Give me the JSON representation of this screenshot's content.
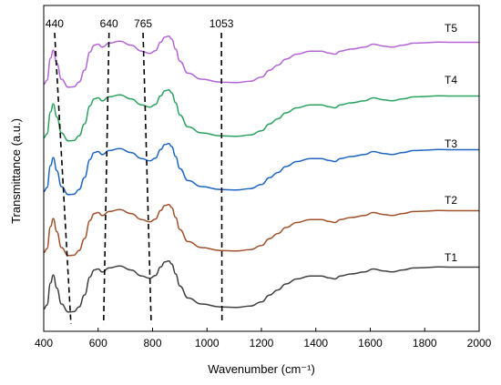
{
  "chart_data": {
    "type": "line",
    "xlabel": "Wavenumber (cm⁻¹)",
    "ylabel": "Transmittance (a.u.)",
    "xlim": [
      400,
      2000
    ],
    "xticks": [
      "400",
      "600",
      "800",
      "1000",
      "1200",
      "1400",
      "1600",
      "1800",
      "2000"
    ],
    "y_ticks_shown": false,
    "grid": false,
    "legend": "series labels placed at right beside each curve",
    "annotations": [
      {
        "label": "440",
        "line_from_x": 440,
        "line_to_x": 500,
        "style": "dashed"
      },
      {
        "label": "640",
        "line_from_x": 640,
        "line_to_x": 620,
        "style": "dashed"
      },
      {
        "label": "765",
        "line_from_x": 765,
        "line_to_x": 795,
        "style": "dashed"
      },
      {
        "label": "1053",
        "line_from_x": 1053,
        "line_to_x": 1055,
        "style": "dashed"
      }
    ],
    "series": [
      {
        "name": "T1",
        "color": "#404040",
        "x": [
          400,
          412,
          425,
          435,
          448,
          465,
          490,
          510,
          530,
          550,
          570,
          585,
          600,
          615,
          640,
          680,
          720,
          760,
          790,
          810,
          830,
          845,
          860,
          870,
          885,
          900,
          930,
          980,
          1050,
          1110,
          1160,
          1200,
          1230,
          1260,
          1290,
          1330,
          1380,
          1420,
          1450,
          1470,
          1490,
          1530,
          1580,
          1610,
          1650,
          1680,
          1720,
          1760,
          1800,
          1850,
          1900,
          1950,
          2000
        ],
        "y": [
          0.25,
          0.45,
          1.55,
          1.95,
          1.3,
          0.5,
          0.1,
          0.12,
          0.35,
          0.95,
          1.85,
          2.2,
          2.25,
          2.1,
          2.3,
          2.4,
          2.2,
          1.9,
          1.78,
          1.92,
          2.35,
          2.6,
          2.65,
          2.5,
          2.0,
          1.4,
          0.8,
          0.5,
          0.35,
          0.33,
          0.4,
          0.6,
          0.95,
          1.2,
          1.5,
          1.75,
          1.9,
          1.9,
          1.8,
          1.75,
          1.9,
          2.0,
          2.1,
          2.25,
          2.15,
          2.1,
          2.2,
          2.3,
          2.32,
          2.35,
          2.34,
          2.34,
          2.34
        ]
      },
      {
        "name": "T2",
        "color": "#a0522d",
        "x": [
          400,
          412,
          425,
          435,
          448,
          465,
          490,
          510,
          530,
          550,
          570,
          585,
          600,
          615,
          640,
          680,
          720,
          760,
          790,
          810,
          830,
          845,
          860,
          870,
          885,
          900,
          930,
          980,
          1050,
          1110,
          1160,
          1200,
          1230,
          1260,
          1290,
          1330,
          1380,
          1420,
          1450,
          1470,
          1490,
          1530,
          1580,
          1610,
          1650,
          1680,
          1720,
          1760,
          1800,
          1850,
          1900,
          1950,
          2000
        ],
        "y": [
          0.25,
          0.45,
          1.55,
          1.95,
          1.3,
          0.5,
          0.1,
          0.12,
          0.35,
          0.95,
          1.85,
          2.2,
          2.25,
          2.1,
          2.3,
          2.4,
          2.2,
          1.9,
          1.78,
          1.92,
          2.35,
          2.6,
          2.65,
          2.5,
          2.0,
          1.4,
          0.8,
          0.5,
          0.35,
          0.33,
          0.4,
          0.6,
          0.95,
          1.2,
          1.5,
          1.75,
          1.9,
          1.9,
          1.8,
          1.75,
          1.9,
          2.0,
          2.1,
          2.25,
          2.15,
          2.1,
          2.2,
          2.3,
          2.32,
          2.35,
          2.34,
          2.34,
          2.34
        ]
      },
      {
        "name": "T3",
        "color": "#1f66c2",
        "x": [
          400,
          412,
          425,
          435,
          448,
          465,
          490,
          510,
          530,
          550,
          570,
          585,
          600,
          615,
          640,
          680,
          720,
          760,
          790,
          810,
          830,
          845,
          860,
          870,
          885,
          900,
          930,
          980,
          1050,
          1110,
          1160,
          1200,
          1230,
          1260,
          1290,
          1330,
          1380,
          1420,
          1450,
          1470,
          1490,
          1530,
          1580,
          1610,
          1650,
          1680,
          1720,
          1760,
          1800,
          1850,
          1900,
          1950,
          2000
        ],
        "y": [
          0.25,
          0.45,
          1.55,
          1.95,
          1.3,
          0.5,
          0.1,
          0.12,
          0.35,
          0.95,
          1.85,
          2.2,
          2.25,
          2.1,
          2.3,
          2.4,
          2.2,
          1.9,
          1.78,
          1.92,
          2.35,
          2.6,
          2.65,
          2.5,
          2.0,
          1.4,
          0.8,
          0.5,
          0.35,
          0.33,
          0.4,
          0.6,
          0.95,
          1.2,
          1.5,
          1.75,
          1.9,
          1.9,
          1.8,
          1.75,
          1.9,
          2.0,
          2.1,
          2.25,
          2.15,
          2.1,
          2.2,
          2.3,
          2.32,
          2.35,
          2.34,
          2.34,
          2.34
        ]
      },
      {
        "name": "T4",
        "color": "#2ca25f",
        "x": [
          400,
          412,
          425,
          435,
          448,
          465,
          490,
          510,
          530,
          550,
          570,
          585,
          600,
          615,
          640,
          680,
          720,
          760,
          790,
          810,
          830,
          845,
          860,
          870,
          885,
          900,
          930,
          980,
          1050,
          1110,
          1160,
          1200,
          1230,
          1260,
          1290,
          1330,
          1380,
          1420,
          1450,
          1470,
          1490,
          1530,
          1580,
          1610,
          1650,
          1680,
          1720,
          1760,
          1800,
          1850,
          1900,
          1950,
          2000
        ],
        "y": [
          0.25,
          0.45,
          1.55,
          1.95,
          1.3,
          0.5,
          0.1,
          0.12,
          0.35,
          0.95,
          1.85,
          2.2,
          2.25,
          2.1,
          2.3,
          2.4,
          2.2,
          1.9,
          1.78,
          1.92,
          2.35,
          2.6,
          2.65,
          2.5,
          2.0,
          1.4,
          0.8,
          0.5,
          0.35,
          0.33,
          0.4,
          0.6,
          0.95,
          1.2,
          1.5,
          1.75,
          1.9,
          1.9,
          1.8,
          1.75,
          1.9,
          2.0,
          2.1,
          2.25,
          2.15,
          2.1,
          2.2,
          2.3,
          2.32,
          2.35,
          2.34,
          2.34,
          2.34
        ]
      },
      {
        "name": "T5",
        "color": "#b565d6",
        "x": [
          400,
          412,
          425,
          435,
          448,
          465,
          490,
          510,
          530,
          550,
          570,
          585,
          600,
          615,
          640,
          680,
          720,
          760,
          790,
          810,
          830,
          845,
          860,
          870,
          885,
          900,
          930,
          980,
          1050,
          1110,
          1160,
          1200,
          1230,
          1260,
          1290,
          1330,
          1380,
          1420,
          1450,
          1470,
          1490,
          1530,
          1580,
          1610,
          1650,
          1680,
          1720,
          1760,
          1800,
          1850,
          1900,
          1950,
          2000
        ],
        "y": [
          0.25,
          0.45,
          1.55,
          1.95,
          1.3,
          0.5,
          0.1,
          0.12,
          0.35,
          0.95,
          1.85,
          2.2,
          2.25,
          2.1,
          2.3,
          2.4,
          2.2,
          1.9,
          1.78,
          1.92,
          2.35,
          2.6,
          2.65,
          2.5,
          2.0,
          1.4,
          0.8,
          0.5,
          0.35,
          0.33,
          0.4,
          0.6,
          0.95,
          1.2,
          1.5,
          1.75,
          1.9,
          1.9,
          1.8,
          1.75,
          1.9,
          2.0,
          2.1,
          2.25,
          2.15,
          2.1,
          2.2,
          2.3,
          2.32,
          2.35,
          2.34,
          2.34,
          2.34
        ]
      }
    ]
  }
}
